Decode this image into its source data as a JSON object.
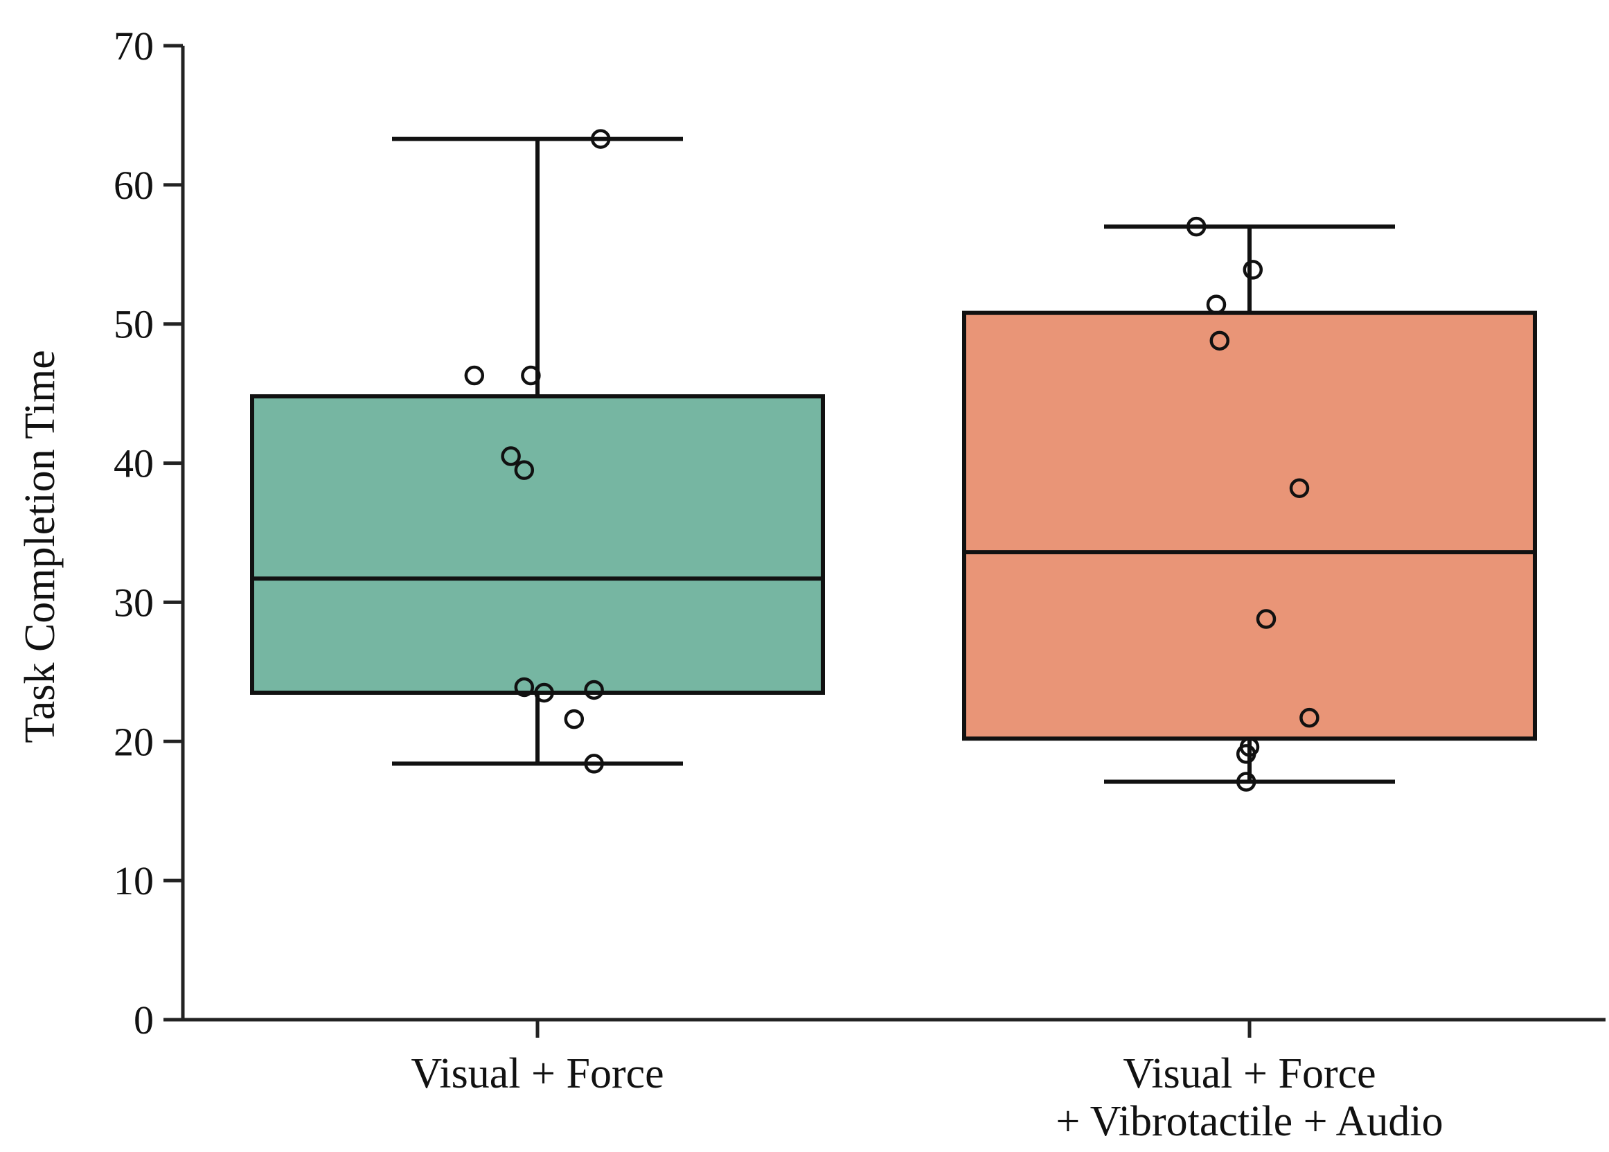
{
  "chart_data": {
    "type": "box",
    "ylabel": "Task Completion Time",
    "ylim": [
      0,
      70
    ],
    "yticks": [
      0,
      10,
      20,
      30,
      40,
      50,
      60,
      70
    ],
    "ytick_labels": [
      "0",
      "10",
      "20",
      "30",
      "40",
      "50",
      "60",
      "70"
    ],
    "categories": [
      {
        "lines": [
          "Visual + Force"
        ]
      },
      {
        "lines": [
          "Visual + Force",
          "+ Vibrotactile + Audio"
        ]
      }
    ],
    "boxes": [
      {
        "color": "#76b6a2",
        "whisker_low": 18.4,
        "q1": 23.5,
        "median": 31.7,
        "q3": 44.8,
        "whisker_high": 63.3
      },
      {
        "color": "#e99577",
        "whisker_low": 17.1,
        "q1": 20.2,
        "median": 33.6,
        "q3": 50.8,
        "whisker_high": 57.0
      }
    ],
    "points": [
      [
        {
          "jitter": -0.19,
          "y": 46.3
        },
        {
          "jitter": -0.02,
          "y": 46.3
        },
        {
          "jitter": -0.08,
          "y": 40.5
        },
        {
          "jitter": -0.04,
          "y": 39.5
        },
        {
          "jitter": -0.04,
          "y": 23.9
        },
        {
          "jitter": 0.02,
          "y": 23.5
        },
        {
          "jitter": 0.17,
          "y": 23.7
        },
        {
          "jitter": 0.11,
          "y": 21.6
        },
        {
          "jitter": 0.17,
          "y": 18.4
        },
        {
          "jitter": 0.19,
          "y": 63.3
        }
      ],
      [
        {
          "jitter": -0.16,
          "y": 57.0
        },
        {
          "jitter": 0.01,
          "y": 53.9
        },
        {
          "jitter": -0.1,
          "y": 51.4
        },
        {
          "jitter": -0.09,
          "y": 48.8
        },
        {
          "jitter": 0.15,
          "y": 38.2
        },
        {
          "jitter": 0.05,
          "y": 28.8
        },
        {
          "jitter": 0.18,
          "y": 21.7
        },
        {
          "jitter": 0.0,
          "y": 19.6
        },
        {
          "jitter": -0.01,
          "y": 19.1
        },
        {
          "jitter": -0.01,
          "y": 17.1
        }
      ]
    ],
    "grid": false,
    "legend": "none"
  }
}
